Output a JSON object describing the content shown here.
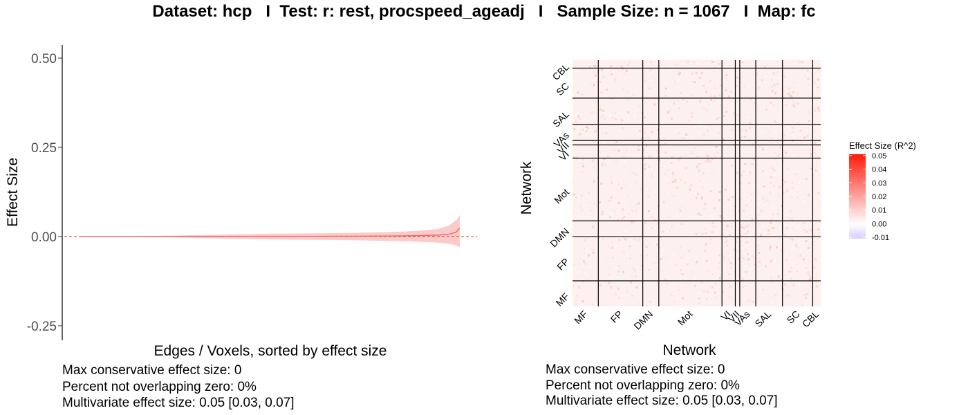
{
  "title": "Dataset: hcp   I  Test: r: rest, procspeed_ageadj   I   Sample Size: n = 1067   I  Map: fc",
  "chart_data": [
    {
      "type": "area",
      "xlabel": "Edges / Voxels, sorted by effect size",
      "ylabel": "Effect Size",
      "ylim": [
        -0.29,
        0.535
      ],
      "yticks": [
        "0.50",
        "0.25",
        "0.00",
        "-0.25"
      ],
      "ytick_values": [
        0.5,
        0.25,
        0.0,
        -0.25
      ],
      "reference_line": 0.0,
      "grid": false,
      "series": [
        {
          "x": [
            0,
            0.1,
            0.2,
            0.3,
            0.4,
            0.5,
            0.6,
            0.7,
            0.8,
            0.85,
            0.9,
            0.94,
            0.97,
            0.99,
            1.0
          ],
          "values": [
            0.0,
            0.0,
            0.0,
            0.0,
            0.0,
            0.0,
            0.0005,
            0.001,
            0.0015,
            0.002,
            0.003,
            0.004,
            0.006,
            0.012,
            0.024
          ],
          "lower": [
            0.0,
            -0.001,
            -0.002,
            -0.004,
            -0.006,
            -0.008,
            -0.009,
            -0.01,
            -0.012,
            -0.013,
            -0.015,
            -0.017,
            -0.02,
            -0.025,
            -0.03
          ],
          "upper": [
            0.0,
            0.001,
            0.002,
            0.004,
            0.006,
            0.008,
            0.009,
            0.01,
            0.012,
            0.014,
            0.017,
            0.021,
            0.03,
            0.045,
            0.06
          ]
        }
      ],
      "stats": [
        "Max conservative effect size: 0",
        "Percent not overlapping zero: 0%",
        "Multivariate effect size: 0.05 [0.03, 0.07]"
      ]
    },
    {
      "type": "heatmap",
      "xlabel": "Network",
      "ylabel": "Network",
      "categories": [
        "MF",
        "FP",
        "DMN",
        "Mot",
        "VI",
        "VII",
        "VAs",
        "SAL",
        "SC",
        "CBL"
      ],
      "network_sizes": [
        29,
        50,
        18,
        71,
        15,
        5,
        18,
        30,
        34,
        9
      ],
      "legend_title": "Effect Size (R^2)",
      "legend_ticks": [
        "0.05",
        "0.04",
        "0.03",
        "0.02",
        "0.01",
        "0.00",
        "-0.01"
      ],
      "legend_values": [
        0.05,
        0.04,
        0.03,
        0.02,
        0.01,
        0.0,
        -0.01
      ],
      "colors": {
        "high": "#ff0000",
        "mid": "#ffffff",
        "low": "#8c4dff"
      },
      "stats": [
        "Max conservative effect size: 0",
        "Percent not overlapping zero: 0%",
        "Multivariate effect size: 0.05 [0.03, 0.07]"
      ]
    }
  ]
}
